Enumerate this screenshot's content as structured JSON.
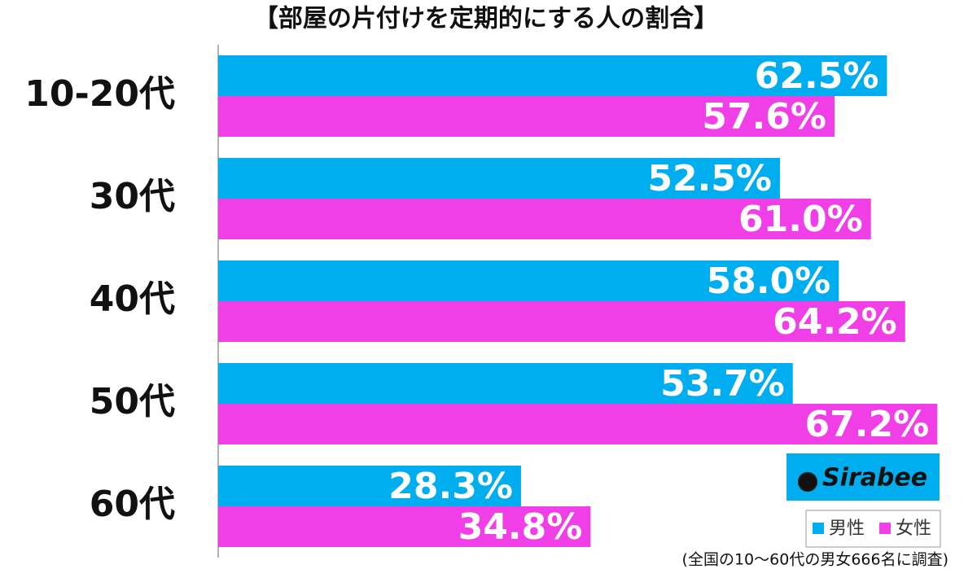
{
  "chart_data": {
    "type": "hbar",
    "title": "【部屋の片付けを定期的にする人の割合】",
    "categories": [
      "10-20代",
      "30代",
      "40代",
      "50代",
      "60代"
    ],
    "series": [
      {
        "name": "男性",
        "color": "#00aeef",
        "values": [
          62.5,
          52.5,
          58.0,
          53.7,
          28.3
        ],
        "value_labels": [
          "62.5%",
          "52.5%",
          "58.0%",
          "53.7%",
          "28.3%"
        ]
      },
      {
        "name": "女性",
        "color": "#f03fe6",
        "values": [
          57.6,
          61.0,
          64.2,
          67.2,
          34.8
        ],
        "value_labels": [
          "57.6%",
          "61.0%",
          "64.2%",
          "67.2%",
          "34.8%"
        ]
      }
    ],
    "xlim": [
      0,
      70
    ],
    "legend": "bottom-right",
    "logo": "Sirabee",
    "note": "(全国の10〜60代の男女666名に調査)"
  }
}
